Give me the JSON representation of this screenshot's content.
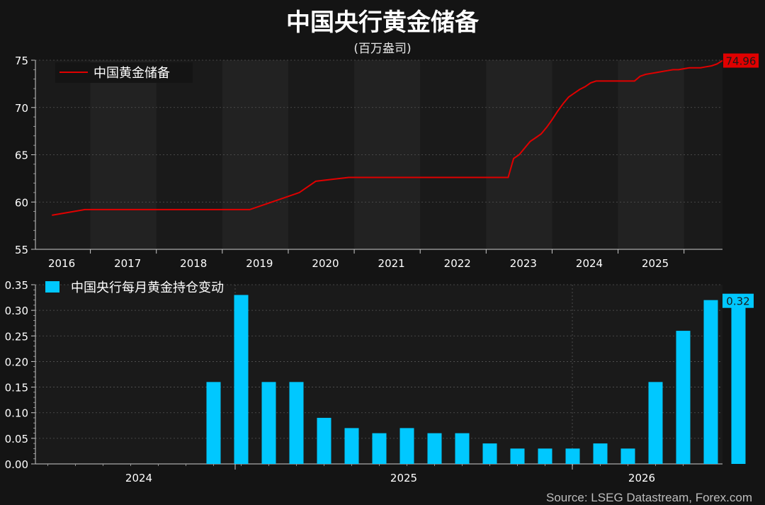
{
  "title": "中国央行黄金储备",
  "subtitle": "(百万盎司)",
  "source": "Source: LSEG Datastream, Forex.com",
  "colors": {
    "background": "#141414",
    "plot_background": "#1a1a1a",
    "band": "#222222",
    "line": "#e00000",
    "bar": "#00c8ff",
    "grid": "#555555"
  },
  "chart_data": [
    {
      "type": "line",
      "title": "",
      "legend": "中国黄金储备",
      "legend_position": "top-left",
      "ylim": [
        55,
        75
      ],
      "y_ticks": [
        "55",
        "60",
        "65",
        "70",
        "75"
      ],
      "x_ticks": [
        "2016",
        "2017",
        "2018",
        "2019",
        "2020",
        "2021",
        "2022",
        "2023",
        "2024",
        "2025"
      ],
      "last_value_label": "74.96",
      "series": [
        {
          "name": "中国黄金储备",
          "x": [
            "2015-12",
            "2016-03",
            "2016-06",
            "2018-12",
            "2019-03",
            "2019-06",
            "2019-09",
            "2019-12",
            "2020-06",
            "2021-06",
            "2022-06",
            "2022-11",
            "2022-12",
            "2023-01",
            "2023-02",
            "2023-03",
            "2023-04",
            "2023-05",
            "2023-06",
            "2023-07",
            "2023-08",
            "2023-09",
            "2023-10",
            "2023-11",
            "2023-12",
            "2024-01",
            "2024-02",
            "2024-03",
            "2024-04",
            "2024-05",
            "2024-10",
            "2024-11",
            "2024-12",
            "2025-01",
            "2025-02",
            "2025-03",
            "2025-04",
            "2025-05",
            "2025-06",
            "2025-07",
            "2025-08",
            "2025-09",
            "2025-10",
            "2025-11",
            "2025-12",
            "2026-01",
            "2026-02"
          ],
          "y": [
            58.6,
            58.9,
            59.2,
            59.2,
            59.8,
            60.4,
            61.0,
            62.2,
            62.6,
            62.6,
            62.6,
            62.6,
            64.6,
            65.0,
            65.7,
            66.4,
            66.8,
            67.2,
            67.9,
            68.7,
            69.6,
            70.4,
            71.1,
            71.5,
            71.9,
            72.2,
            72.6,
            72.8,
            72.8,
            72.8,
            72.8,
            73.3,
            73.5,
            73.6,
            73.7,
            73.8,
            73.9,
            74.0,
            74.0,
            74.1,
            74.2,
            74.2,
            74.2,
            74.3,
            74.4,
            74.6,
            74.96
          ]
        }
      ]
    },
    {
      "type": "bar",
      "title": "",
      "legend": "中国央行每月黄金持仓变动",
      "legend_position": "top-left",
      "ylim": [
        0,
        0.35
      ],
      "y_ticks": [
        "0.00",
        "0.05",
        "0.10",
        "0.15",
        "0.20",
        "0.25",
        "0.30",
        "0.35"
      ],
      "x_ticks": [
        "2024",
        "2025",
        "2026"
      ],
      "last_value_label": "0.32",
      "categories": [
        "2024-11",
        "2024-12",
        "2025-01",
        "2025-02",
        "2025-03",
        "2025-04",
        "2025-05",
        "2025-06",
        "2025-07",
        "2025-08",
        "2025-09",
        "2025-10",
        "2025-11",
        "2025-12",
        "2026-01",
        "2026-02",
        "2026-03",
        "2026-04",
        "2026-05",
        "2026-06"
      ],
      "values": [
        0.16,
        0.33,
        0.16,
        0.16,
        0.09,
        0.07,
        0.06,
        0.07,
        0.06,
        0.06,
        0.04,
        0.03,
        0.03,
        0.03,
        0.04,
        0.03,
        0.16,
        0.26,
        0.32,
        0.32
      ]
    }
  ]
}
